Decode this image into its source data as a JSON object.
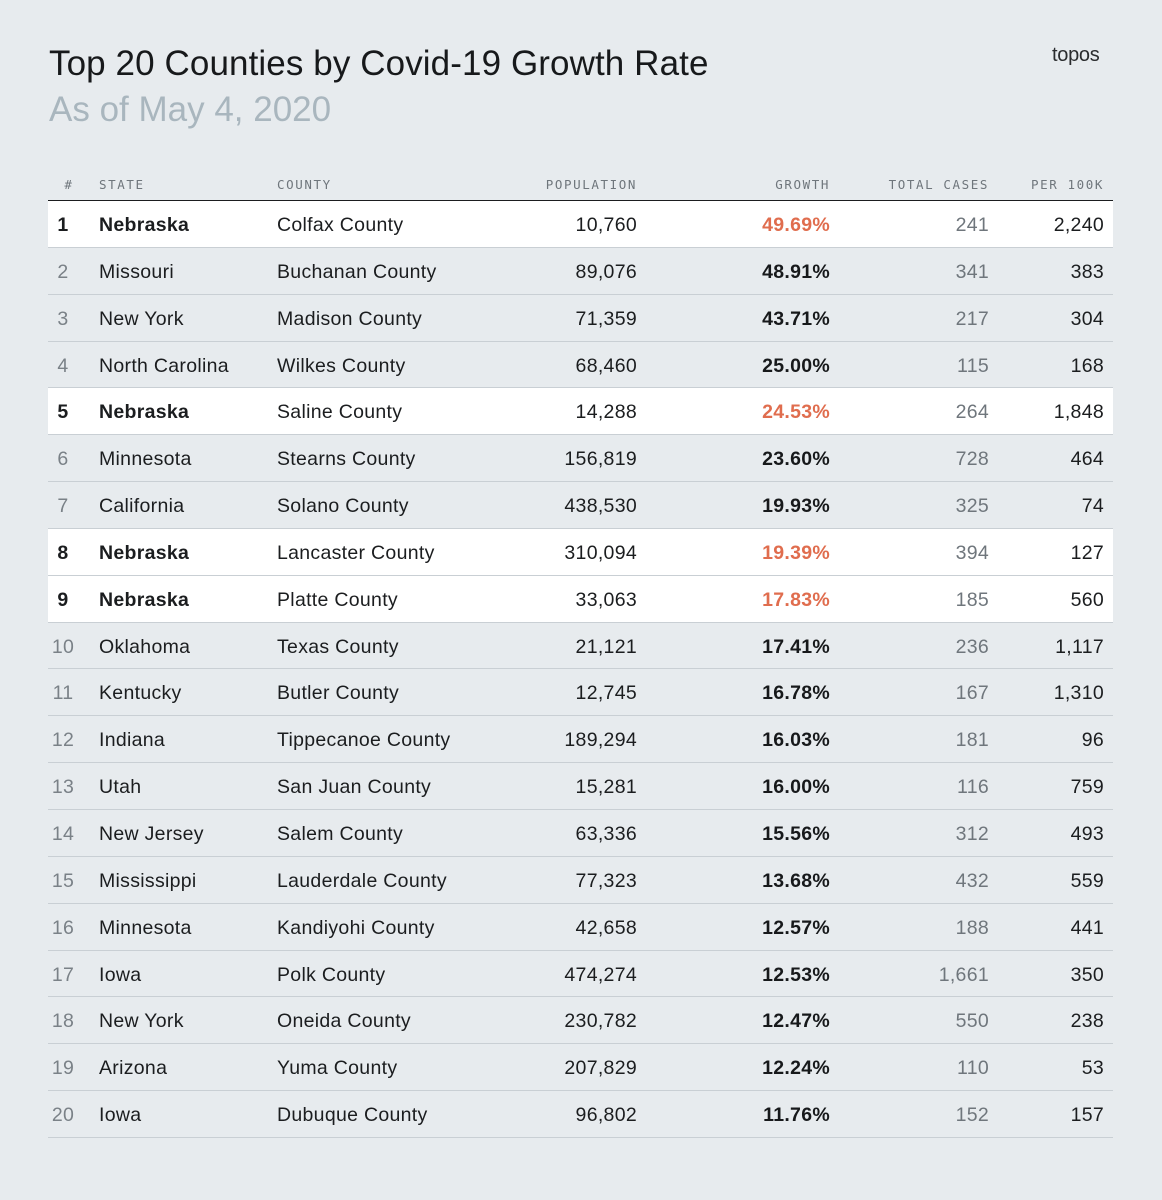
{
  "title": "Top 20 Counties by Covid-19 Growth Rate",
  "subtitle": "As of May 4, 2020",
  "brand": "topos",
  "colors": {
    "highlight_growth": "#e06d4e",
    "highlight_row": "#ffffff",
    "background": "#e7ebee"
  },
  "columns": [
    "#",
    "STATE",
    "COUNTY",
    "POPULATION",
    "GROWTH",
    "TOTAL CASES",
    "PER 100K"
  ],
  "rows": [
    {
      "rank": "1",
      "state": "Nebraska",
      "county": "Colfax County",
      "population": "10,760",
      "growth": "49.69%",
      "total_cases": "241",
      "per_100k": "2,240",
      "highlight": true
    },
    {
      "rank": "2",
      "state": "Missouri",
      "county": "Buchanan County",
      "population": "89,076",
      "growth": "48.91%",
      "total_cases": "341",
      "per_100k": "383",
      "highlight": false
    },
    {
      "rank": "3",
      "state": "New York",
      "county": "Madison County",
      "population": "71,359",
      "growth": "43.71%",
      "total_cases": "217",
      "per_100k": "304",
      "highlight": false
    },
    {
      "rank": "4",
      "state": "North Carolina",
      "county": "Wilkes County",
      "population": "68,460",
      "growth": "25.00%",
      "total_cases": "115",
      "per_100k": "168",
      "highlight": false
    },
    {
      "rank": "5",
      "state": "Nebraska",
      "county": "Saline County",
      "population": "14,288",
      "growth": "24.53%",
      "total_cases": "264",
      "per_100k": "1,848",
      "highlight": true
    },
    {
      "rank": "6",
      "state": "Minnesota",
      "county": "Stearns County",
      "population": "156,819",
      "growth": "23.60%",
      "total_cases": "728",
      "per_100k": "464",
      "highlight": false
    },
    {
      "rank": "7",
      "state": "California",
      "county": "Solano County",
      "population": "438,530",
      "growth": "19.93%",
      "total_cases": "325",
      "per_100k": "74",
      "highlight": false
    },
    {
      "rank": "8",
      "state": "Nebraska",
      "county": "Lancaster County",
      "population": "310,094",
      "growth": "19.39%",
      "total_cases": "394",
      "per_100k": "127",
      "highlight": true
    },
    {
      "rank": "9",
      "state": "Nebraska",
      "county": "Platte County",
      "population": "33,063",
      "growth": "17.83%",
      "total_cases": "185",
      "per_100k": "560",
      "highlight": true
    },
    {
      "rank": "10",
      "state": "Oklahoma",
      "county": "Texas County",
      "population": "21,121",
      "growth": "17.41%",
      "total_cases": "236",
      "per_100k": "1,117",
      "highlight": false
    },
    {
      "rank": "11",
      "state": "Kentucky",
      "county": "Butler County",
      "population": "12,745",
      "growth": "16.78%",
      "total_cases": "167",
      "per_100k": "1,310",
      "highlight": false
    },
    {
      "rank": "12",
      "state": "Indiana",
      "county": "Tippecanoe County",
      "population": "189,294",
      "growth": "16.03%",
      "total_cases": "181",
      "per_100k": "96",
      "highlight": false
    },
    {
      "rank": "13",
      "state": "Utah",
      "county": "San Juan County",
      "population": "15,281",
      "growth": "16.00%",
      "total_cases": "116",
      "per_100k": "759",
      "highlight": false
    },
    {
      "rank": "14",
      "state": "New Jersey",
      "county": "Salem County",
      "population": "63,336",
      "growth": "15.56%",
      "total_cases": "312",
      "per_100k": "493",
      "highlight": false
    },
    {
      "rank": "15",
      "state": "Mississippi",
      "county": "Lauderdale County",
      "population": "77,323",
      "growth": "13.68%",
      "total_cases": "432",
      "per_100k": "559",
      "highlight": false
    },
    {
      "rank": "16",
      "state": "Minnesota",
      "county": "Kandiyohi County",
      "population": "42,658",
      "growth": "12.57%",
      "total_cases": "188",
      "per_100k": "441",
      "highlight": false
    },
    {
      "rank": "17",
      "state": "Iowa",
      "county": "Polk County",
      "population": "474,274",
      "growth": "12.53%",
      "total_cases": "1,661",
      "per_100k": "350",
      "highlight": false
    },
    {
      "rank": "18",
      "state": "New York",
      "county": "Oneida County",
      "population": "230,782",
      "growth": "12.47%",
      "total_cases": "550",
      "per_100k": "238",
      "highlight": false
    },
    {
      "rank": "19",
      "state": "Arizona",
      "county": "Yuma County",
      "population": "207,829",
      "growth": "12.24%",
      "total_cases": "110",
      "per_100k": "53",
      "highlight": false
    },
    {
      "rank": "20",
      "state": "Iowa",
      "county": "Dubuque County",
      "population": "96,802",
      "growth": "11.76%",
      "total_cases": "152",
      "per_100k": "157",
      "highlight": false
    }
  ],
  "chart_data": {
    "type": "table",
    "title": "Top 20 Counties by Covid-19 Growth Rate",
    "subtitle": "As of May 4, 2020",
    "columns": [
      "#",
      "STATE",
      "COUNTY",
      "POPULATION",
      "GROWTH",
      "TOTAL CASES",
      "PER 100K"
    ],
    "growth_percent": [
      49.69,
      48.91,
      43.71,
      25.0,
      24.53,
      23.6,
      19.93,
      19.39,
      17.83,
      17.41,
      16.78,
      16.03,
      16.0,
      15.56,
      13.68,
      12.57,
      12.53,
      12.47,
      12.24,
      11.76
    ],
    "population": [
      10760,
      89076,
      71359,
      68460,
      14288,
      156819,
      438530,
      310094,
      33063,
      21121,
      12745,
      189294,
      15281,
      63336,
      77323,
      42658,
      474274,
      230782,
      207829,
      96802
    ],
    "total_cases": [
      241,
      341,
      217,
      115,
      264,
      728,
      325,
      394,
      185,
      236,
      167,
      181,
      116,
      312,
      432,
      188,
      1661,
      550,
      110,
      152
    ],
    "per_100k": [
      2240,
      383,
      304,
      168,
      1848,
      464,
      74,
      127,
      560,
      1117,
      1310,
      96,
      759,
      493,
      559,
      441,
      350,
      238,
      53,
      157
    ],
    "highlighted_state": "Nebraska"
  }
}
